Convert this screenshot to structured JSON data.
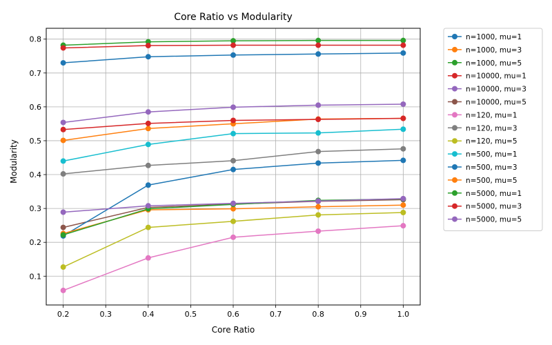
{
  "chart_data": {
    "type": "line",
    "title": "Core Ratio vs Modularity",
    "xlabel": "Core Ratio",
    "ylabel": "Modularity",
    "xlim": [
      0.16,
      1.04
    ],
    "ylim": [
      0.015,
      0.832
    ],
    "xticks": [
      0.2,
      0.3,
      0.4,
      0.5,
      0.6,
      0.7,
      0.8,
      0.9,
      1.0
    ],
    "yticks": [
      0.1,
      0.2,
      0.3,
      0.4,
      0.5,
      0.6,
      0.7,
      0.8
    ],
    "grid": true,
    "legend_position": "outside-right",
    "x": [
      0.2,
      0.4,
      0.6,
      0.8,
      1.0
    ],
    "series": [
      {
        "name": "n=1000, mu=1",
        "color": "#1f77b4",
        "values": [
          0.73,
          0.748,
          0.753,
          0.756,
          0.759
        ]
      },
      {
        "name": "n=1000, mu=3",
        "color": "#ff7f0e",
        "values": [
          0.501,
          0.536,
          0.55,
          0.564,
          0.566
        ]
      },
      {
        "name": "n=1000, mu=5",
        "color": "#2ca02c",
        "values": [
          0.782,
          0.792,
          0.795,
          0.796,
          0.796
        ]
      },
      {
        "name": "n=10000, mu=1",
        "color": "#d62728",
        "values": [
          0.774,
          0.781,
          0.782,
          0.782,
          0.782
        ]
      },
      {
        "name": "n=10000, mu=3",
        "color": "#9467bd",
        "values": [
          0.554,
          0.585,
          0.599,
          0.605,
          0.608
        ]
      },
      {
        "name": "n=10000, mu=5",
        "color": "#8c564b",
        "values": [
          0.244,
          0.303,
          0.313,
          0.321,
          0.326
        ]
      },
      {
        "name": "n=120, mu=1",
        "color": "#e377c2",
        "values": [
          0.058,
          0.154,
          0.215,
          0.233,
          0.249
        ]
      },
      {
        "name": "n=120, mu=3",
        "color": "#7f7f7f",
        "values": [
          0.402,
          0.427,
          0.441,
          0.468,
          0.476
        ]
      },
      {
        "name": "n=120, mu=5",
        "color": "#bcbd22",
        "values": [
          0.127,
          0.244,
          0.262,
          0.281,
          0.288
        ]
      },
      {
        "name": "n=500, mu=1",
        "color": "#17becf",
        "values": [
          0.44,
          0.489,
          0.521,
          0.523,
          0.534
        ]
      },
      {
        "name": "n=500, mu=3",
        "color": "#1f77b4",
        "values": [
          0.219,
          0.369,
          0.415,
          0.434,
          0.442
        ]
      },
      {
        "name": "n=500, mu=5",
        "color": "#ff7f0e",
        "values": [
          0.226,
          0.296,
          0.299,
          0.305,
          0.31
        ]
      },
      {
        "name": "n=5000, mu=1",
        "color": "#2ca02c",
        "values": [
          0.222,
          0.299,
          0.312,
          0.324,
          0.328
        ]
      },
      {
        "name": "n=5000, mu=3",
        "color": "#d62728",
        "values": [
          0.533,
          0.551,
          0.56,
          0.563,
          0.566
        ]
      },
      {
        "name": "n=5000, mu=5",
        "color": "#9467bd",
        "values": [
          0.289,
          0.308,
          0.315,
          0.322,
          0.329
        ]
      }
    ]
  }
}
